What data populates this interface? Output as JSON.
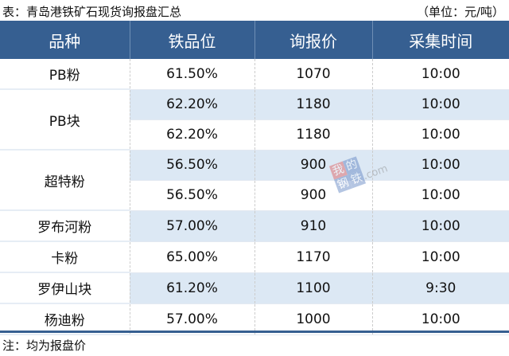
{
  "title": "表：青岛港铁矿石现货询报盘汇总",
  "unit": "（单位：元/吨）",
  "columns": [
    "品种",
    "铁品位",
    "询报价",
    "采集时间"
  ],
  "groups": [
    {
      "name": "PB粉",
      "rows": [
        {
          "grade": "61.50%",
          "price": "1070",
          "time": "10:00"
        }
      ]
    },
    {
      "name": "PB块",
      "rows": [
        {
          "grade": "62.20%",
          "price": "1180",
          "time": "10:00"
        },
        {
          "grade": "62.20%",
          "price": "1180",
          "time": "10:00"
        }
      ]
    },
    {
      "name": "超特粉",
      "rows": [
        {
          "grade": "56.50%",
          "price": "900",
          "time": "10:00"
        },
        {
          "grade": "56.50%",
          "price": "900",
          "time": "10:00"
        }
      ]
    },
    {
      "name": "罗布河粉",
      "rows": [
        {
          "grade": "57.00%",
          "price": "910",
          "time": "10:00"
        }
      ]
    },
    {
      "name": "卡粉",
      "rows": [
        {
          "grade": "65.00%",
          "price": "1170",
          "time": "10:00"
        }
      ]
    },
    {
      "name": "罗伊山块",
      "rows": [
        {
          "grade": "61.20%",
          "price": "1100",
          "time": "9:30"
        }
      ]
    },
    {
      "name": "杨迪粉",
      "rows": [
        {
          "grade": "57.00%",
          "price": "1000",
          "time": "10:00"
        }
      ]
    }
  ],
  "note": "注：均为报盘价",
  "watermark": {
    "chars": [
      "我",
      "的",
      "钢",
      "铁"
    ],
    "text": "Mysteel.com"
  },
  "colors": {
    "header": "#365f91",
    "shade": "#dce8f4"
  }
}
